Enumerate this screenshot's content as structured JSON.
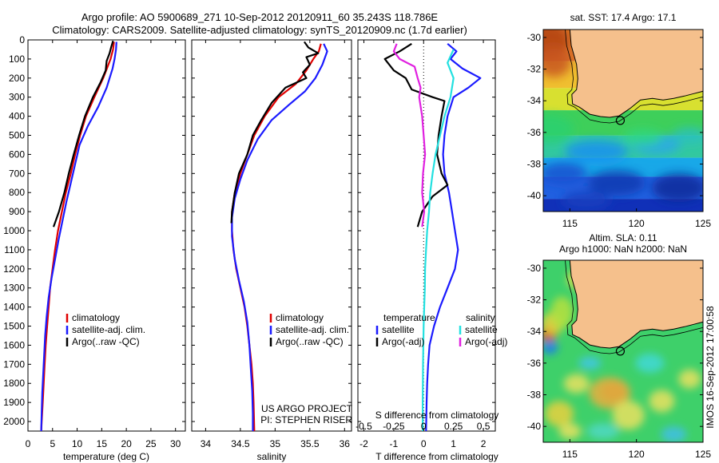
{
  "header": {
    "line1": "Argo profile: AO 5900689_271 10-Sep-2012 20120911_60 35.243S 118.786E",
    "line2": "Climatology: CARS2009. Satellite-adjusted climatology: synTS_20120909.nc (1.7d earlier)"
  },
  "colors": {
    "climatology": "#e00000",
    "satellite": "#1a1aff",
    "argo": "#000000",
    "sal_satellite": "#22e0e0",
    "sal_argo": "#e020e0",
    "land": "#f5c08c"
  },
  "chart_data": [
    {
      "type": "line",
      "name": "temperature-profile",
      "xlabel": "temperature (deg C)",
      "ylabel": "",
      "xlim": [
        0,
        32
      ],
      "ylim": [
        2050,
        0
      ],
      "xticks": [
        0,
        5,
        10,
        15,
        20,
        25,
        30
      ],
      "yticks": [
        0,
        100,
        200,
        300,
        400,
        500,
        600,
        700,
        800,
        900,
        1000,
        1100,
        1200,
        1300,
        1400,
        1500,
        1600,
        1700,
        1800,
        1900,
        2000
      ],
      "legend": [
        "climatology",
        "satellite-adj. clim.",
        "Argo(..raw -QC)"
      ],
      "series": [
        {
          "name": "climatology",
          "color": "#e00000",
          "points": [
            [
              17.5,
              10
            ],
            [
              17.3,
              50
            ],
            [
              16.8,
              100
            ],
            [
              15.3,
              200
            ],
            [
              13.5,
              300
            ],
            [
              11.8,
              400
            ],
            [
              10.6,
              500
            ],
            [
              9.6,
              600
            ],
            [
              8.7,
              700
            ],
            [
              7.7,
              800
            ],
            [
              6.9,
              900
            ],
            [
              6.1,
              1000
            ],
            [
              5.5,
              1100
            ],
            [
              5.0,
              1200
            ],
            [
              4.5,
              1300
            ],
            [
              4.2,
              1400
            ],
            [
              3.9,
              1500
            ],
            [
              3.6,
              1600
            ],
            [
              3.4,
              1700
            ],
            [
              3.2,
              1800
            ],
            [
              3.0,
              1900
            ],
            [
              2.8,
              2000
            ],
            [
              2.7,
              2050
            ]
          ]
        },
        {
          "name": "satellite-adj. clim.",
          "color": "#1a1aff",
          "points": [
            [
              18.0,
              10
            ],
            [
              17.9,
              50
            ],
            [
              17.6,
              100
            ],
            [
              17.2,
              150
            ],
            [
              16.0,
              250
            ],
            [
              14.3,
              350
            ],
            [
              12.2,
              450
            ],
            [
              10.5,
              550
            ],
            [
              9.6,
              650
            ],
            [
              8.7,
              750
            ],
            [
              7.8,
              850
            ],
            [
              7.0,
              950
            ],
            [
              6.2,
              1050
            ],
            [
              5.5,
              1150
            ],
            [
              4.8,
              1250
            ],
            [
              4.2,
              1350
            ],
            [
              3.8,
              1450
            ],
            [
              3.5,
              1550
            ],
            [
              3.3,
              1650
            ],
            [
              3.1,
              1750
            ],
            [
              2.9,
              1850
            ],
            [
              2.8,
              1950
            ],
            [
              2.7,
              2050
            ]
          ]
        },
        {
          "name": "Argo(..raw -QC)",
          "color": "#000000",
          "points": [
            [
              17.3,
              5
            ],
            [
              16.9,
              40
            ],
            [
              16.6,
              70
            ],
            [
              16.0,
              110
            ],
            [
              15.8,
              160
            ],
            [
              14.8,
              220
            ],
            [
              13.2,
              300
            ],
            [
              11.6,
              400
            ],
            [
              10.4,
              500
            ],
            [
              9.3,
              600
            ],
            [
              8.3,
              700
            ],
            [
              7.4,
              800
            ],
            [
              6.3,
              900
            ],
            [
              5.2,
              980
            ]
          ]
        }
      ]
    },
    {
      "type": "line",
      "name": "salinity-profile",
      "xlabel": "salinity",
      "ylabel": "",
      "xlim": [
        33.8,
        36.1
      ],
      "ylim": [
        2050,
        0
      ],
      "xticks": [
        34,
        34.5,
        35,
        35.5,
        36
      ],
      "legend": [
        "climatology",
        "satellite-adj. clim.",
        "Argo(..raw -QC)"
      ],
      "annotation": [
        "US ARGO PROJECT",
        "PI: STEPHEN RISER"
      ],
      "series": [
        {
          "name": "climatology",
          "color": "#e00000",
          "points": [
            [
              35.66,
              20
            ],
            [
              35.63,
              60
            ],
            [
              35.55,
              100
            ],
            [
              35.45,
              160
            ],
            [
              35.3,
              230
            ],
            [
              35.05,
              300
            ],
            [
              34.85,
              400
            ],
            [
              34.7,
              500
            ],
            [
              34.6,
              600
            ],
            [
              34.5,
              700
            ],
            [
              34.42,
              800
            ],
            [
              34.38,
              900
            ],
            [
              34.38,
              1000
            ],
            [
              34.4,
              1100
            ],
            [
              34.44,
              1200
            ],
            [
              34.5,
              1300
            ],
            [
              34.56,
              1400
            ],
            [
              34.6,
              1500
            ],
            [
              34.63,
              1600
            ],
            [
              34.66,
              1700
            ],
            [
              34.68,
              1800
            ],
            [
              34.69,
              1900
            ],
            [
              34.7,
              2050
            ]
          ]
        },
        {
          "name": "satellite-adj. clim.",
          "color": "#1a1aff",
          "points": [
            [
              35.7,
              20
            ],
            [
              35.75,
              60
            ],
            [
              35.68,
              130
            ],
            [
              35.58,
              200
            ],
            [
              35.43,
              270
            ],
            [
              35.2,
              340
            ],
            [
              34.95,
              420
            ],
            [
              34.75,
              520
            ],
            [
              34.6,
              630
            ],
            [
              34.5,
              730
            ],
            [
              34.42,
              830
            ],
            [
              34.38,
              930
            ],
            [
              34.38,
              1030
            ],
            [
              34.42,
              1150
            ],
            [
              34.48,
              1260
            ],
            [
              34.55,
              1370
            ],
            [
              34.6,
              1480
            ],
            [
              34.63,
              1600
            ],
            [
              34.65,
              1720
            ],
            [
              34.67,
              1840
            ],
            [
              34.68,
              1960
            ],
            [
              34.68,
              2050
            ]
          ]
        },
        {
          "name": "Argo(..raw -QC)",
          "color": "#000000",
          "points": [
            [
              35.42,
              10
            ],
            [
              35.48,
              40
            ],
            [
              35.62,
              70
            ],
            [
              35.45,
              90
            ],
            [
              35.5,
              130
            ],
            [
              35.4,
              170
            ],
            [
              35.45,
              200
            ],
            [
              35.15,
              250
            ],
            [
              34.95,
              330
            ],
            [
              34.8,
              420
            ],
            [
              34.68,
              500
            ],
            [
              34.6,
              600
            ],
            [
              34.48,
              700
            ],
            [
              34.42,
              800
            ],
            [
              34.38,
              900
            ],
            [
              34.37,
              960
            ]
          ]
        }
      ]
    },
    {
      "type": "line",
      "name": "difference-profile",
      "xlabel": "T difference from climatology",
      "xlabel_top": "S difference from climatology",
      "xlim": [
        -2.2,
        2.4
      ],
      "ylim": [
        2050,
        0
      ],
      "xticks": [
        -2,
        -1,
        0,
        1,
        2
      ],
      "xtick_labels_top": [
        "-0.5",
        "-0.25",
        "0",
        "0.25",
        "0.5"
      ],
      "legend_titles": [
        "temperature",
        "salinity"
      ],
      "legend": [
        "satellite",
        "Argo(-adj)",
        "satellite",
        "Argo(-adj)"
      ],
      "series": [
        {
          "name": "satellite",
          "group": "temperature",
          "color": "#1a1aff",
          "points": [
            [
              0.8,
              20
            ],
            [
              1.1,
              60
            ],
            [
              0.9,
              100
            ],
            [
              1.3,
              150
            ],
            [
              1.9,
              200
            ],
            [
              1.5,
              250
            ],
            [
              1.0,
              300
            ],
            [
              0.8,
              400
            ],
            [
              0.7,
              500
            ],
            [
              0.65,
              600
            ],
            [
              0.7,
              700
            ],
            [
              0.85,
              800
            ],
            [
              0.95,
              900
            ],
            [
              1.05,
              1000
            ],
            [
              1.15,
              1100
            ],
            [
              1.05,
              1200
            ],
            [
              0.8,
              1300
            ],
            [
              0.55,
              1400
            ],
            [
              0.35,
              1500
            ],
            [
              0.2,
              1600
            ],
            [
              0.15,
              1700
            ],
            [
              0.12,
              1800
            ],
            [
              0.1,
              1900
            ],
            [
              0.08,
              2050
            ]
          ]
        },
        {
          "name": "Argo(-adj)",
          "group": "temperature",
          "color": "#000000",
          "points": [
            [
              -0.4,
              20
            ],
            [
              -0.8,
              60
            ],
            [
              -1.3,
              100
            ],
            [
              -1.0,
              160
            ],
            [
              -0.6,
              200
            ],
            [
              -0.4,
              260
            ],
            [
              0.3,
              300
            ],
            [
              0.7,
              320
            ],
            [
              0.6,
              400
            ],
            [
              0.5,
              500
            ],
            [
              0.45,
              600
            ],
            [
              0.6,
              700
            ],
            [
              0.8,
              760
            ],
            [
              0.3,
              820
            ],
            [
              -0.05,
              900
            ],
            [
              -0.2,
              980
            ]
          ]
        },
        {
          "name": "satellite",
          "group": "salinity",
          "color": "#22e0e0",
          "points": [
            [
              1.0,
              50
            ],
            [
              0.8,
              120
            ],
            [
              1.0,
              200
            ],
            [
              0.9,
              300
            ],
            [
              0.7,
              400
            ],
            [
              0.55,
              500
            ],
            [
              0.4,
              600
            ],
            [
              0.3,
              700
            ],
            [
              0.22,
              800
            ],
            [
              0.18,
              900
            ],
            [
              0.12,
              1000
            ],
            [
              0.08,
              1100
            ],
            [
              0.05,
              1200
            ],
            [
              0.04,
              1300
            ],
            [
              0.02,
              1400
            ],
            [
              0.0,
              1500
            ],
            [
              -0.02,
              1700
            ],
            [
              -0.03,
              1900
            ],
            [
              -0.03,
              2050
            ]
          ]
        },
        {
          "name": "Argo(-adj)",
          "group": "salinity",
          "color": "#e020e0",
          "points": [
            [
              -0.9,
              20
            ],
            [
              -1.0,
              60
            ],
            [
              -0.8,
              100
            ],
            [
              -0.3,
              140
            ],
            [
              -0.2,
              200
            ],
            [
              -0.1,
              250
            ],
            [
              -0.15,
              300
            ],
            [
              -0.05,
              400
            ],
            [
              0.0,
              500
            ],
            [
              0.05,
              600
            ],
            [
              -0.02,
              700
            ],
            [
              -0.05,
              800
            ],
            [
              0.02,
              900
            ],
            [
              -0.05,
              980
            ]
          ]
        }
      ]
    },
    {
      "type": "heatmap",
      "name": "sst-map",
      "title": "sat. SST: 17.4  Argo: 17.1",
      "xlim": [
        113,
        125
      ],
      "ylim": [
        -41,
        -29.5
      ],
      "xticks": [
        115,
        120,
        125
      ],
      "yticks": [
        -30,
        -32,
        -34,
        -36,
        -38,
        -40
      ],
      "argo_position": [
        118.786,
        -35.243
      ]
    },
    {
      "type": "heatmap",
      "name": "sla-map",
      "title": "Altim. SLA: 0.11",
      "subtitle": "Argo h1000: NaN h2000: NaN",
      "xlim": [
        113,
        125
      ],
      "ylim": [
        -41,
        -29.5
      ],
      "xticks": [
        115,
        120,
        125
      ],
      "yticks": [
        -30,
        -32,
        -34,
        -36,
        -38,
        -40
      ],
      "argo_position": [
        118.786,
        -35.243
      ]
    }
  ],
  "side_label": "IMOS 16-Sep-2012 17:00:58"
}
